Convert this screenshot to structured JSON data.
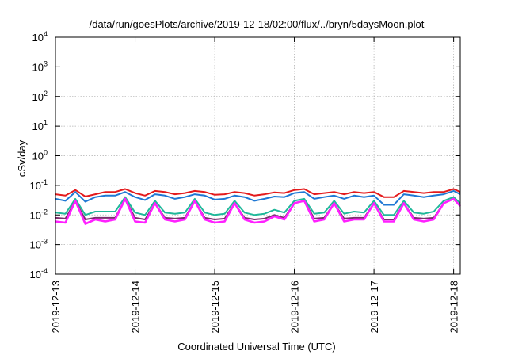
{
  "chart_data": {
    "type": "line",
    "title": "/data/run/goesPlots/archive/2019-12-18/02:00/flux/../bryn/5daysMoon.plot",
    "xlabel": "Coordinated Universal Time (UTC)",
    "ylabel": "cSv/day",
    "yscale": "log",
    "ylim": [
      0.0001,
      10000
    ],
    "xlim": [
      "2019-12-13 00:00",
      "2019-12-18 02:00"
    ],
    "grid": true,
    "legend": "none",
    "x_ticks": [
      "2019-12-13",
      "2019-12-14",
      "2019-12-15",
      "2019-12-16",
      "2019-12-17",
      "2019-12-18"
    ],
    "y_ticks": [
      {
        "base": "10",
        "exp": "-4",
        "value": 0.0001
      },
      {
        "base": "10",
        "exp": "-3",
        "value": 0.001
      },
      {
        "base": "10",
        "exp": "-2",
        "value": 0.01
      },
      {
        "base": "10",
        "exp": "-1",
        "value": 0.1
      },
      {
        "base": "10",
        "exp": "0",
        "value": 1
      },
      {
        "base": "10",
        "exp": "1",
        "value": 10
      },
      {
        "base": "10",
        "exp": "2",
        "value": 100
      },
      {
        "base": "10",
        "exp": "3",
        "value": 1000
      },
      {
        "base": "10",
        "exp": "4",
        "value": 10000
      }
    ],
    "x": [
      "2019-12-13 00:00",
      "2019-12-13 03:00",
      "2019-12-13 06:00",
      "2019-12-13 09:00",
      "2019-12-13 12:00",
      "2019-12-13 15:00",
      "2019-12-13 18:00",
      "2019-12-13 21:00",
      "2019-12-14 00:00",
      "2019-12-14 03:00",
      "2019-12-14 06:00",
      "2019-12-14 09:00",
      "2019-12-14 12:00",
      "2019-12-14 15:00",
      "2019-12-14 18:00",
      "2019-12-14 21:00",
      "2019-12-15 00:00",
      "2019-12-15 03:00",
      "2019-12-15 06:00",
      "2019-12-15 09:00",
      "2019-12-15 12:00",
      "2019-12-15 15:00",
      "2019-12-15 18:00",
      "2019-12-15 21:00",
      "2019-12-16 00:00",
      "2019-12-16 03:00",
      "2019-12-16 06:00",
      "2019-12-16 09:00",
      "2019-12-16 12:00",
      "2019-12-16 15:00",
      "2019-12-16 18:00",
      "2019-12-16 21:00",
      "2019-12-17 00:00",
      "2019-12-17 03:00",
      "2019-12-17 06:00",
      "2019-12-17 09:00",
      "2019-12-17 12:00",
      "2019-12-17 15:00",
      "2019-12-17 18:00",
      "2019-12-17 21:00",
      "2019-12-18 00:00",
      "2019-12-18 02:00"
    ],
    "series": [
      {
        "color": "#e41a1c",
        "values": [
          0.05,
          0.045,
          0.07,
          0.042,
          0.05,
          0.06,
          0.06,
          0.075,
          0.055,
          0.045,
          0.065,
          0.06,
          0.05,
          0.055,
          0.065,
          0.06,
          0.048,
          0.05,
          0.06,
          0.055,
          0.045,
          0.05,
          0.058,
          0.055,
          0.07,
          0.075,
          0.05,
          0.055,
          0.06,
          0.05,
          0.06,
          0.055,
          0.06,
          0.04,
          0.04,
          0.065,
          0.06,
          0.055,
          0.06,
          0.06,
          0.075,
          0.06
        ]
      },
      {
        "color": "#1f78d4",
        "values": [
          0.035,
          0.03,
          0.06,
          0.028,
          0.04,
          0.045,
          0.045,
          0.06,
          0.04,
          0.032,
          0.05,
          0.045,
          0.035,
          0.04,
          0.05,
          0.045,
          0.033,
          0.035,
          0.045,
          0.04,
          0.03,
          0.035,
          0.042,
          0.04,
          0.055,
          0.06,
          0.035,
          0.04,
          0.045,
          0.035,
          0.045,
          0.04,
          0.045,
          0.022,
          0.022,
          0.05,
          0.045,
          0.04,
          0.045,
          0.05,
          0.065,
          0.05
        ]
      },
      {
        "color": "#20b89a",
        "values": [
          0.012,
          0.011,
          0.035,
          0.01,
          0.013,
          0.013,
          0.013,
          0.04,
          0.012,
          0.01,
          0.03,
          0.012,
          0.011,
          0.012,
          0.035,
          0.012,
          0.01,
          0.011,
          0.03,
          0.012,
          0.01,
          0.011,
          0.015,
          0.012,
          0.03,
          0.035,
          0.011,
          0.012,
          0.03,
          0.011,
          0.013,
          0.012,
          0.03,
          0.01,
          0.01,
          0.03,
          0.012,
          0.011,
          0.013,
          0.03,
          0.04,
          0.025
        ]
      },
      {
        "color": "#7b2d6e",
        "values": [
          0.008,
          0.0075,
          0.03,
          0.007,
          0.008,
          0.008,
          0.008,
          0.035,
          0.008,
          0.007,
          0.025,
          0.008,
          0.0075,
          0.008,
          0.03,
          0.008,
          0.007,
          0.0075,
          0.025,
          0.008,
          0.007,
          0.0075,
          0.01,
          0.008,
          0.025,
          0.03,
          0.0075,
          0.008,
          0.025,
          0.0075,
          0.008,
          0.008,
          0.025,
          0.007,
          0.007,
          0.025,
          0.008,
          0.0075,
          0.008,
          0.025,
          0.035,
          0.02
        ]
      },
      {
        "color": "#ff21ff",
        "values": [
          0.006,
          0.0055,
          0.03,
          0.005,
          0.007,
          0.006,
          0.007,
          0.035,
          0.006,
          0.0055,
          0.025,
          0.007,
          0.006,
          0.007,
          0.03,
          0.007,
          0.0055,
          0.006,
          0.025,
          0.007,
          0.0055,
          0.006,
          0.009,
          0.007,
          0.025,
          0.03,
          0.006,
          0.007,
          0.025,
          0.006,
          0.007,
          0.007,
          0.025,
          0.006,
          0.006,
          0.025,
          0.007,
          0.006,
          0.007,
          0.025,
          0.035,
          0.02
        ]
      }
    ]
  }
}
